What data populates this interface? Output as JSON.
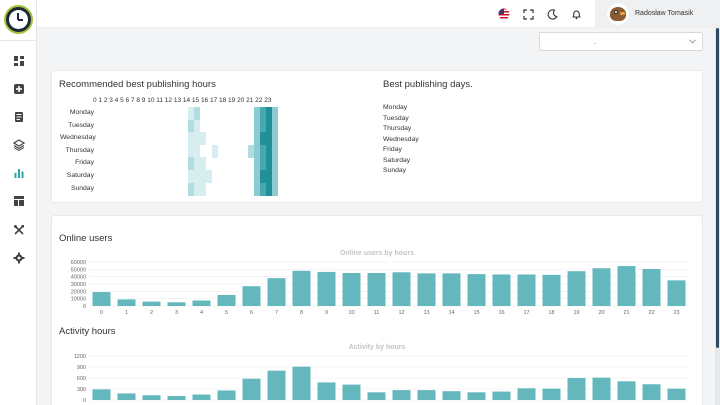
{
  "colors": {
    "accent": "#64b8bd",
    "sidebar_active": "#2aa5a5",
    "icon": "#444444",
    "logo_ring": "#a3c33a"
  },
  "sidebar": {
    "items": [
      {
        "name": "dashboard-icon",
        "active": false
      },
      {
        "name": "add-icon",
        "active": false
      },
      {
        "name": "document-icon",
        "active": false
      },
      {
        "name": "layers-icon",
        "active": false
      },
      {
        "name": "bar-chart-icon",
        "active": true
      },
      {
        "name": "layout-icon",
        "active": false
      },
      {
        "name": "tools-icon",
        "active": false
      },
      {
        "name": "gear-icon",
        "active": false
      }
    ]
  },
  "header": {
    "icons": [
      "us-flag-icon",
      "fullscreen-icon",
      "moon-icon",
      "bell-icon"
    ],
    "user_name": "Radosław Tomasik",
    "select_value": "."
  },
  "publishing": {
    "hours_title": "Recommended best publishing hours",
    "hours_label": "0 1 2 3 4 5 6 7 8 9 10 11 12 13 14 15 16 17 18 19 20 21 22 23",
    "days": [
      "Monday",
      "Tuesday",
      "Wednesday",
      "Thursday",
      "Friday",
      "Saturday",
      "Sunday"
    ],
    "heat_levels": [
      [
        0,
        0,
        0,
        0,
        0,
        0,
        0,
        1,
        2,
        0,
        0,
        0,
        0,
        0,
        0,
        0,
        0,
        0,
        3,
        4,
        5,
        3,
        0,
        0
      ],
      [
        0,
        0,
        0,
        0,
        0,
        0,
        0,
        2,
        1,
        0,
        0,
        0,
        0,
        0,
        0,
        0,
        0,
        0,
        3,
        4,
        5,
        3,
        0,
        0
      ],
      [
        0,
        0,
        0,
        0,
        0,
        0,
        0,
        1,
        1,
        1,
        0,
        0,
        0,
        0,
        0,
        0,
        0,
        0,
        3,
        5,
        5,
        3,
        0,
        0
      ],
      [
        0,
        0,
        0,
        0,
        0,
        0,
        0,
        1,
        1,
        0,
        0,
        1,
        0,
        0,
        0,
        0,
        0,
        2,
        3,
        4,
        5,
        3,
        0,
        0
      ],
      [
        0,
        0,
        0,
        0,
        0,
        0,
        0,
        2,
        1,
        1,
        0,
        0,
        0,
        0,
        0,
        0,
        0,
        0,
        3,
        4,
        5,
        3,
        0,
        0
      ],
      [
        0,
        0,
        0,
        0,
        0,
        0,
        0,
        1,
        1,
        1,
        1,
        0,
        0,
        0,
        0,
        0,
        0,
        0,
        3,
        5,
        5,
        3,
        0,
        0
      ],
      [
        0,
        0,
        0,
        0,
        0,
        0,
        0,
        2,
        1,
        1,
        0,
        0,
        0,
        0,
        0,
        0,
        0,
        0,
        3,
        4,
        5,
        3,
        0,
        0
      ]
    ],
    "days_title": "Best publishing days.",
    "best_days": [
      "Monday",
      "Tuesday",
      "Thursday",
      "Wednesday",
      "Friday",
      "Saturday",
      "Sunday"
    ]
  },
  "online_users": {
    "section_title": "Online users"
  },
  "activity": {
    "section_title": "Activity hours"
  },
  "chart_data": [
    {
      "type": "bar",
      "title": "Online users by hours",
      "categories": [
        "0",
        "1",
        "2",
        "3",
        "4",
        "5",
        "6",
        "7",
        "8",
        "9",
        "10",
        "11",
        "12",
        "13",
        "14",
        "15",
        "16",
        "17",
        "18",
        "19",
        "20",
        "21",
        "22",
        "23"
      ],
      "values": [
        19000,
        9000,
        6000,
        5000,
        7500,
        15000,
        27000,
        38000,
        48000,
        46500,
        45000,
        45000,
        46000,
        44500,
        44500,
        43500,
        43000,
        43000,
        42500,
        47500,
        51500,
        54500,
        50500,
        35000
      ],
      "ylim": [
        0,
        60000
      ],
      "yticks": [
        "0",
        "10000",
        "20000",
        "30000",
        "40000",
        "50000",
        "60000"
      ],
      "legend": "none",
      "grid": true
    },
    {
      "type": "bar",
      "title": "Activity by hours",
      "categories": [
        "0",
        "1",
        "2",
        "3",
        "4",
        "5",
        "6",
        "7",
        "8",
        "9",
        "10",
        "11",
        "12",
        "13",
        "14",
        "15",
        "16",
        "17",
        "18",
        "19",
        "20",
        "21",
        "22",
        "23"
      ],
      "values": [
        290,
        180,
        130,
        110,
        150,
        260,
        580,
        800,
        910,
        480,
        420,
        210,
        270,
        270,
        240,
        210,
        230,
        320,
        310,
        600,
        610,
        510,
        430,
        310
      ],
      "ylim": [
        0,
        1200
      ],
      "yticks": [
        "0",
        "300",
        "600",
        "900",
        "1200"
      ],
      "legend": "none",
      "grid": true
    }
  ]
}
